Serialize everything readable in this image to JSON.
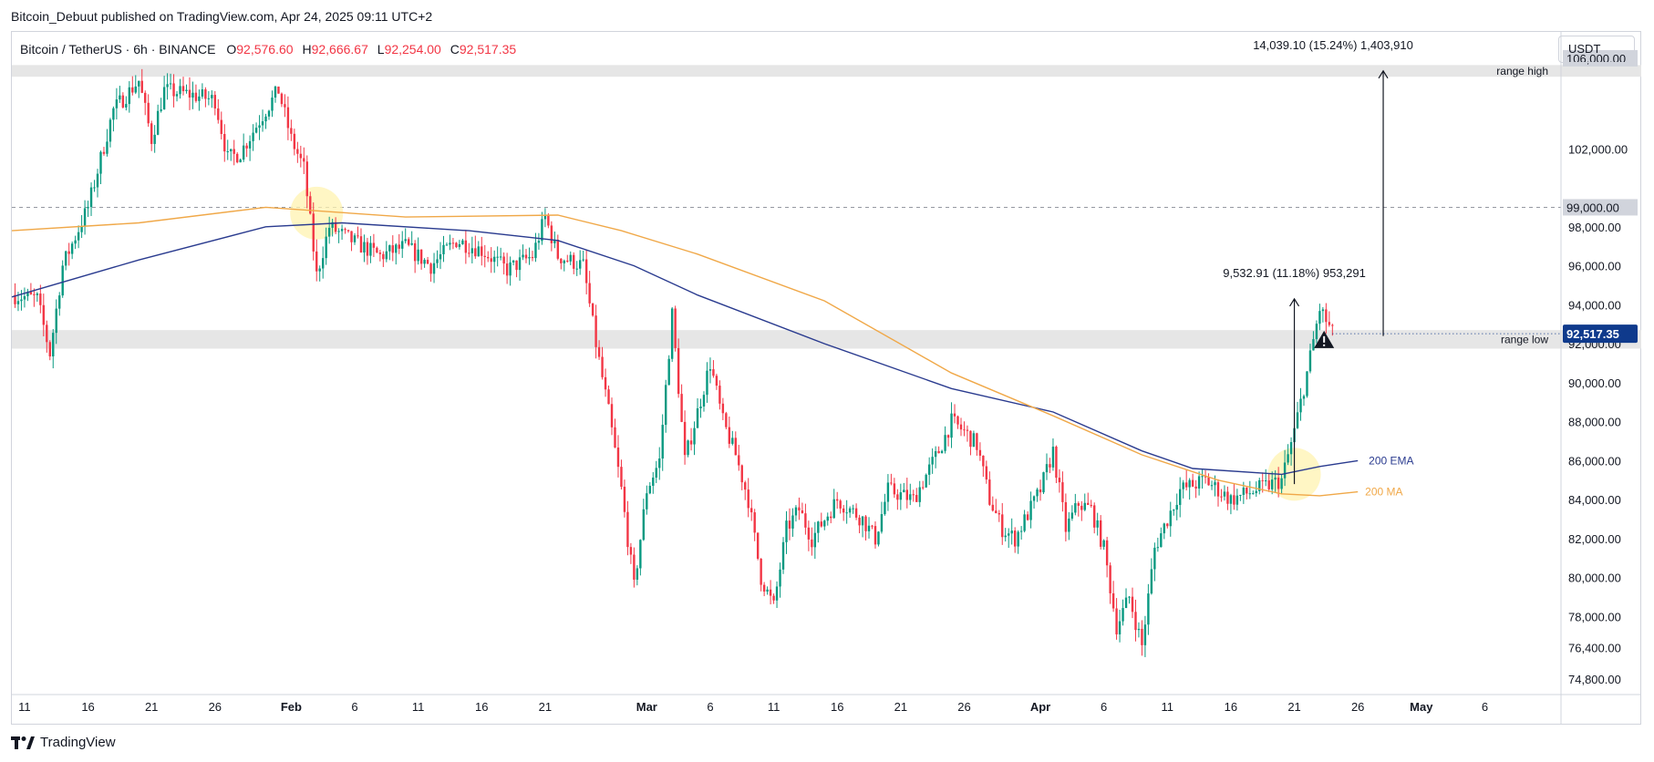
{
  "header": {
    "published_line": "Bitcoin_Debuut published on TradingView.com, Apr 24, 2025 09:11 UTC+2"
  },
  "legend": {
    "symbol": "Bitcoin / TetherUS · 6h · BINANCE",
    "open_label": "O",
    "open": "92,576.60",
    "high_label": "H",
    "high": "92,666.67",
    "low_label": "L",
    "low": "92,254.00",
    "close_label": "C",
    "close": "92,517.35"
  },
  "price_axis": {
    "currency": "USDT",
    "current_price_label": "92,517.35"
  },
  "footer": {
    "brand": "TradingView"
  },
  "colors": {
    "up": "#089981",
    "down": "#f23645",
    "ema": "#2a3b8f",
    "ma": "#f0a848",
    "current_price": "#0f3a8c",
    "range_zone": "#e6e6e6",
    "highlight": "#fff3b0"
  },
  "icons": [
    "tradingview-logo-icon",
    "warning-triangle-icon"
  ],
  "chart_data": {
    "type": "candlestick",
    "title": "Bitcoin / TetherUS",
    "timeframe": "6h",
    "exchange": "BINANCE",
    "ylim": [
      74000,
      108000
    ],
    "y_ticks": [
      {
        "value": 102000,
        "label": "102,000.00"
      },
      {
        "value": 98000,
        "label": "98,000.00"
      },
      {
        "value": 96000,
        "label": "96,000.00"
      },
      {
        "value": 94000,
        "label": "94,000.00"
      },
      {
        "value": 92000,
        "label": "92,000.00"
      },
      {
        "value": 90000,
        "label": "90,000.00"
      },
      {
        "value": 88000,
        "label": "88,000.00"
      },
      {
        "value": 86000,
        "label": "86,000.00"
      },
      {
        "value": 84000,
        "label": "84,000.00"
      },
      {
        "value": 82000,
        "label": "82,000.00"
      },
      {
        "value": 80000,
        "label": "80,000.00"
      },
      {
        "value": 78000,
        "label": "78,000.00"
      },
      {
        "value": 76400,
        "label": "76,400.00"
      },
      {
        "value": 74800,
        "label": "74,800.00"
      }
    ],
    "x_range": [
      "2025-01-10",
      "2025-05-12"
    ],
    "x_ticks": [
      {
        "date": "2025-01-11",
        "label": "11",
        "major": false
      },
      {
        "date": "2025-01-16",
        "label": "16",
        "major": false
      },
      {
        "date": "2025-01-21",
        "label": "21",
        "major": false
      },
      {
        "date": "2025-01-26",
        "label": "26",
        "major": false
      },
      {
        "date": "2025-02-01",
        "label": "Feb",
        "major": true
      },
      {
        "date": "2025-02-06",
        "label": "6",
        "major": false
      },
      {
        "date": "2025-02-11",
        "label": "11",
        "major": false
      },
      {
        "date": "2025-02-16",
        "label": "16",
        "major": false
      },
      {
        "date": "2025-02-21",
        "label": "21",
        "major": false
      },
      {
        "date": "2025-03-01",
        "label": "Mar",
        "major": true
      },
      {
        "date": "2025-03-06",
        "label": "6",
        "major": false
      },
      {
        "date": "2025-03-11",
        "label": "11",
        "major": false
      },
      {
        "date": "2025-03-16",
        "label": "16",
        "major": false
      },
      {
        "date": "2025-03-21",
        "label": "21",
        "major": false
      },
      {
        "date": "2025-03-26",
        "label": "26",
        "major": false
      },
      {
        "date": "2025-04-01",
        "label": "Apr",
        "major": true
      },
      {
        "date": "2025-04-06",
        "label": "6",
        "major": false
      },
      {
        "date": "2025-04-11",
        "label": "11",
        "major": false
      },
      {
        "date": "2025-04-16",
        "label": "16",
        "major": false
      },
      {
        "date": "2025-04-21",
        "label": "21",
        "major": false
      },
      {
        "date": "2025-04-26",
        "label": "26",
        "major": false
      },
      {
        "date": "2025-05-01",
        "label": "May",
        "major": true
      },
      {
        "date": "2025-05-06",
        "label": "6",
        "major": false
      }
    ],
    "price_path": [
      [
        "2025-01-10",
        94500
      ],
      [
        "2025-01-12",
        94300
      ],
      [
        "2025-01-13",
        91500
      ],
      [
        "2025-01-14",
        96000
      ],
      [
        "2025-01-16",
        99000
      ],
      [
        "2025-01-18",
        104000
      ],
      [
        "2025-01-20",
        105500
      ],
      [
        "2025-01-21",
        102500
      ],
      [
        "2025-01-22",
        105000
      ],
      [
        "2025-01-24",
        104800
      ],
      [
        "2025-01-26",
        104500
      ],
      [
        "2025-01-27",
        101500
      ],
      [
        "2025-01-28",
        101800
      ],
      [
        "2025-01-30",
        104000
      ],
      [
        "2025-01-31",
        105000
      ],
      [
        "2025-02-01",
        102500
      ],
      [
        "2025-02-02",
        101000
      ],
      [
        "2025-02-03",
        95500
      ],
      [
        "2025-02-04",
        98000
      ],
      [
        "2025-02-06",
        97200
      ],
      [
        "2025-02-08",
        96500
      ],
      [
        "2025-02-10",
        97000
      ],
      [
        "2025-02-12",
        96000
      ],
      [
        "2025-02-14",
        97300
      ],
      [
        "2025-02-16",
        96800
      ],
      [
        "2025-02-18",
        95800
      ],
      [
        "2025-02-20",
        96500
      ],
      [
        "2025-02-21",
        98500
      ],
      [
        "2025-02-22",
        96500
      ],
      [
        "2025-02-24",
        96000
      ],
      [
        "2025-02-25",
        92000
      ],
      [
        "2025-02-26",
        88500
      ],
      [
        "2025-02-27",
        84500
      ],
      [
        "2025-02-28",
        79500
      ],
      [
        "2025-03-01",
        84500
      ],
      [
        "2025-03-02",
        86000
      ],
      [
        "2025-03-03",
        93500
      ],
      [
        "2025-03-04",
        86000
      ],
      [
        "2025-03-05",
        88500
      ],
      [
        "2025-03-06",
        91000
      ],
      [
        "2025-03-07",
        88000
      ],
      [
        "2025-03-08",
        86300
      ],
      [
        "2025-03-09",
        84000
      ],
      [
        "2025-03-10",
        80000
      ],
      [
        "2025-03-11",
        78500
      ],
      [
        "2025-03-12",
        82500
      ],
      [
        "2025-03-13",
        83500
      ],
      [
        "2025-03-14",
        82000
      ],
      [
        "2025-03-16",
        84000
      ],
      [
        "2025-03-18",
        83000
      ],
      [
        "2025-03-19",
        82000
      ],
      [
        "2025-03-20",
        84500
      ],
      [
        "2025-03-22",
        84000
      ],
      [
        "2025-03-24",
        86500
      ],
      [
        "2025-03-25",
        88000
      ],
      [
        "2025-03-26",
        87500
      ],
      [
        "2025-03-27",
        86800
      ],
      [
        "2025-03-28",
        84000
      ],
      [
        "2025-03-29",
        82500
      ],
      [
        "2025-03-30",
        82000
      ],
      [
        "2025-04-01",
        84500
      ],
      [
        "2025-04-02",
        86500
      ],
      [
        "2025-04-03",
        82500
      ],
      [
        "2025-04-04",
        83800
      ],
      [
        "2025-04-05",
        83500
      ],
      [
        "2025-04-06",
        81500
      ],
      [
        "2025-04-07",
        77500
      ],
      [
        "2025-04-08",
        79000
      ],
      [
        "2025-04-09",
        76500
      ],
      [
        "2025-04-10",
        81500
      ],
      [
        "2025-04-11",
        83000
      ],
      [
        "2025-04-12",
        84500
      ],
      [
        "2025-04-14",
        85000
      ],
      [
        "2025-04-16",
        84000
      ],
      [
        "2025-04-18",
        84500
      ],
      [
        "2025-04-20",
        85000
      ],
      [
        "2025-04-21",
        87500
      ],
      [
        "2025-04-22",
        90500
      ],
      [
        "2025-04-23",
        93800
      ],
      [
        "2025-04-24",
        92517
      ]
    ],
    "series": [
      {
        "name": "200 EMA",
        "points": [
          [
            "2025-01-10",
            94400
          ],
          [
            "2025-01-20",
            96300
          ],
          [
            "2025-01-30",
            98000
          ],
          [
            "2025-02-05",
            98200
          ],
          [
            "2025-02-15",
            97800
          ],
          [
            "2025-02-22",
            97300
          ],
          [
            "2025-02-28",
            96000
          ],
          [
            "2025-03-05",
            94500
          ],
          [
            "2025-03-15",
            92000
          ],
          [
            "2025-03-25",
            89700
          ],
          [
            "2025-04-02",
            88500
          ],
          [
            "2025-04-09",
            86500
          ],
          [
            "2025-04-13",
            85600
          ],
          [
            "2025-04-20",
            85300
          ],
          [
            "2025-04-23",
            85700
          ],
          [
            "2025-04-26",
            86000
          ]
        ]
      },
      {
        "name": "200 MA",
        "points": [
          [
            "2025-01-10",
            97800
          ],
          [
            "2025-01-20",
            98200
          ],
          [
            "2025-01-30",
            99000
          ],
          [
            "2025-02-10",
            98500
          ],
          [
            "2025-02-22",
            98600
          ],
          [
            "2025-02-27",
            97800
          ],
          [
            "2025-03-05",
            96600
          ],
          [
            "2025-03-15",
            94200
          ],
          [
            "2025-03-25",
            90500
          ],
          [
            "2025-04-02",
            88300
          ],
          [
            "2025-04-09",
            86300
          ],
          [
            "2025-04-15",
            85000
          ],
          [
            "2025-04-20",
            84300
          ],
          [
            "2025-04-23",
            84200
          ],
          [
            "2025-04-26",
            84400
          ]
        ]
      }
    ],
    "annotations": {
      "range_high": {
        "label": "range high",
        "from": 105700,
        "to": 106300,
        "price_label": "106,000.00"
      },
      "range_low": {
        "label": "range low",
        "from": 91750,
        "to": 92700
      },
      "level_99k": {
        "value": 99000,
        "price_label": "99,000.00"
      },
      "measure_small": {
        "text": "9,532.91 (11.18%) 953,291",
        "from": 84800,
        "to": 94300,
        "date": "2025-04-21"
      },
      "measure_large": {
        "text": "14,039.10 (15.24%) 1,403,910",
        "from": 92400,
        "to": 106000,
        "date": "2025-04-28"
      },
      "ema_label": "200 EMA",
      "ma_label": "200 MA",
      "highlights": [
        {
          "date": "2025-02-03",
          "value": 98700
        },
        {
          "date": "2025-04-21",
          "value": 85300
        }
      ],
      "warning_marker": {
        "date": "2025-04-26",
        "value": 92200
      }
    }
  }
}
